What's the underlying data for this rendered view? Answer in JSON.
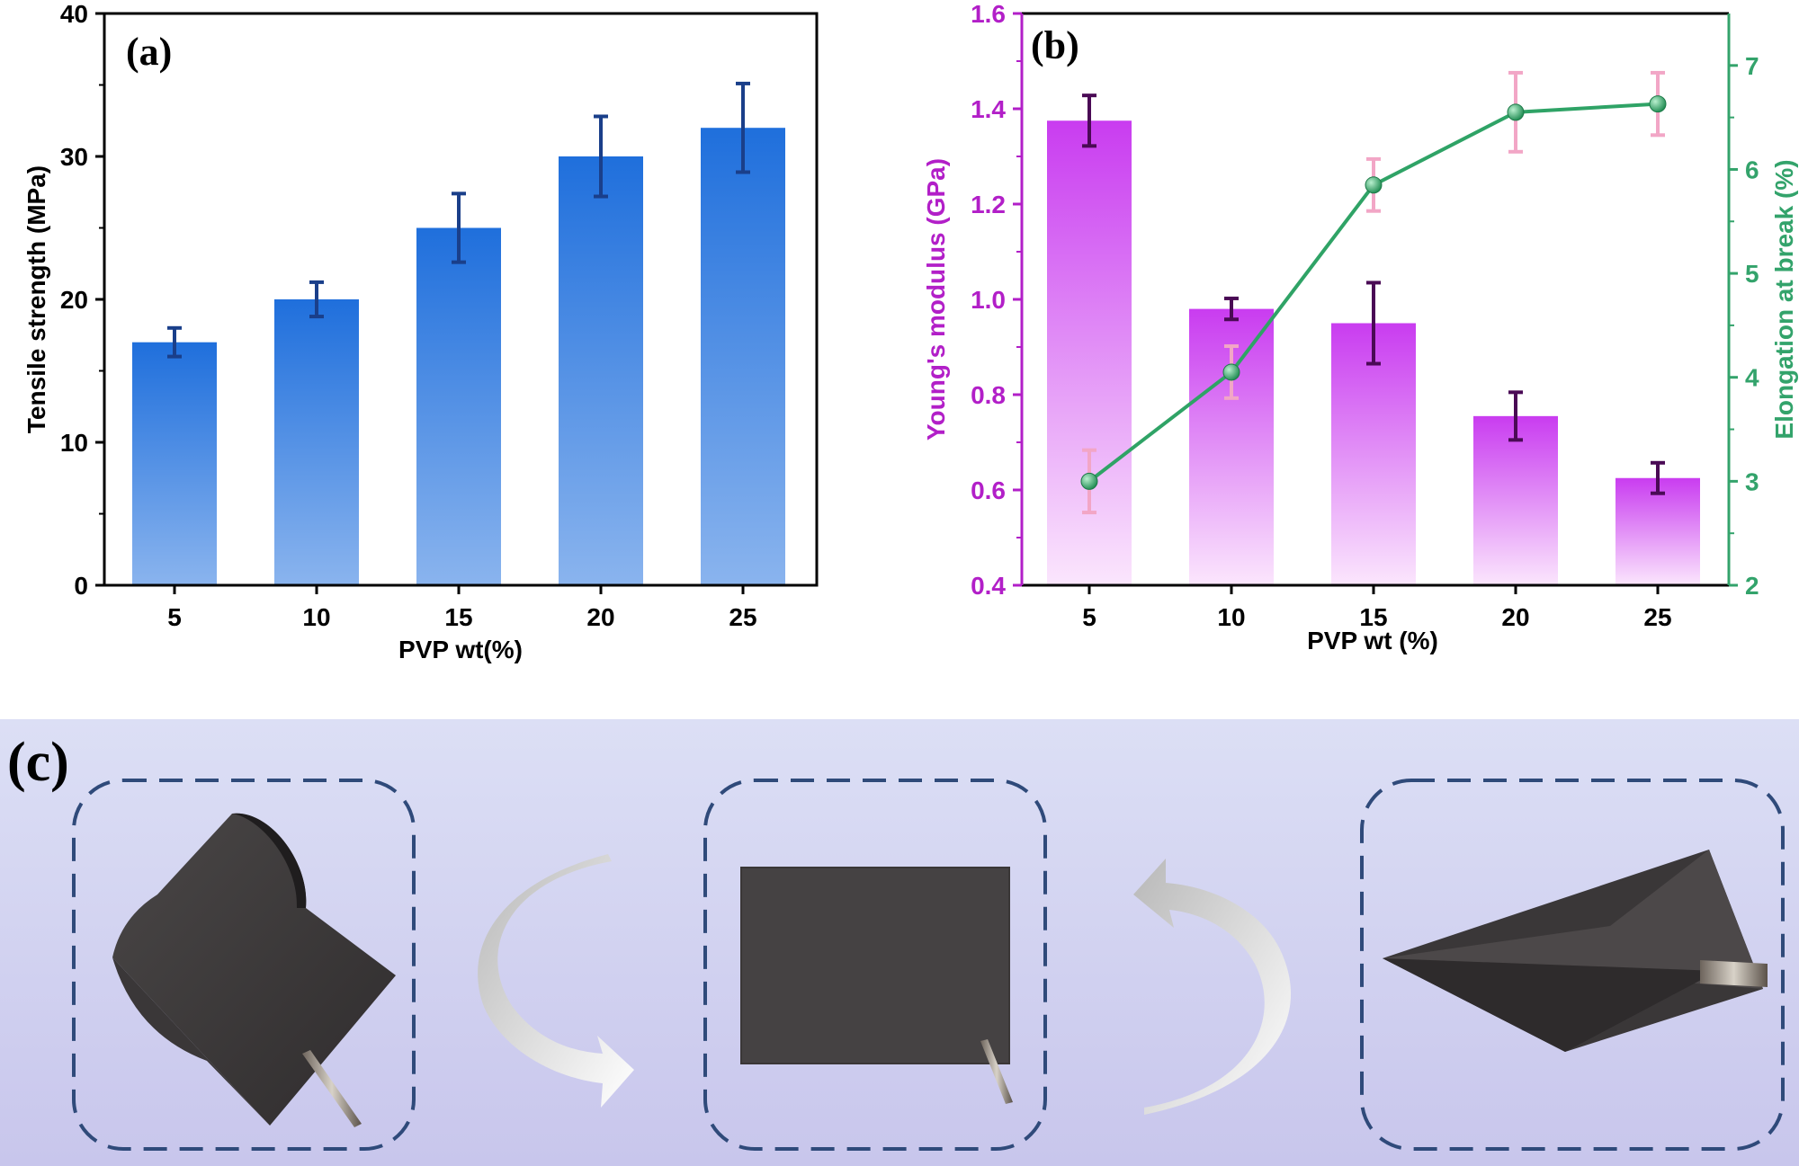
{
  "figure": {
    "colors": {
      "blue_bar_top": "#1f6fdc",
      "blue_bar_bottom": "#8ab4ee",
      "blue_error": "#1a3f8a",
      "magenta_bar_top": "#c93cf0",
      "magenta_bar_bottom": "#fbe6fd",
      "purple_error": "#4a0a55",
      "green_line": "#2fa366",
      "green_axis": "#33a36b",
      "pink_error": "#f2a6c6",
      "magenta_axis": "#b21fc8",
      "panel_c_top": "#d9dbf3",
      "panel_c_bottom": "#c9c8ec",
      "dash_frame": "#2f4a7a"
    }
  },
  "chart_data": [
    {
      "panel": "(a)",
      "type": "bar",
      "categories": [
        "5",
        "10",
        "15",
        "20",
        "25"
      ],
      "series": [
        {
          "values": [
            17,
            20,
            25,
            30,
            32
          ],
          "errors": [
            1.0,
            1.2,
            2.4,
            2.8,
            3.1
          ]
        }
      ],
      "xlabel": "PVP wt(%)",
      "ylabel": "Tensile strength (MPa)",
      "ylim": [
        0,
        40
      ],
      "yticks": [
        "0",
        "10",
        "20",
        "30",
        "40"
      ],
      "grid": false
    },
    {
      "panel": "(b)",
      "type": "bar",
      "categories": [
        "5",
        "10",
        "15",
        "20",
        "25"
      ],
      "series": [
        {
          "axis": "left",
          "kind": "bar",
          "values": [
            1.375,
            0.98,
            0.95,
            0.755,
            0.625
          ],
          "errors": [
            0.053,
            0.022,
            0.085,
            0.05,
            0.032
          ]
        },
        {
          "axis": "right",
          "kind": "line",
          "values": [
            3.0,
            4.05,
            5.85,
            6.55,
            6.63
          ],
          "errors": [
            0.3,
            0.25,
            0.25,
            0.38,
            0.3
          ]
        }
      ],
      "xlabel": "PVP wt (%)",
      "ylabel": "Young's modulus (GPa)",
      "ylabel_right": "Elongation at break (%)",
      "ylim": [
        0.4,
        1.6
      ],
      "ylim_right": [
        2,
        7.5
      ],
      "yticks": [
        "0.4",
        "0.6",
        "0.8",
        "1.0",
        "1.2",
        "1.4",
        "1.6"
      ],
      "yticks_right": [
        "2",
        "3",
        "4",
        "5",
        "6",
        "7"
      ],
      "grid": false
    }
  ],
  "panel_c": {
    "label": "(c)"
  }
}
